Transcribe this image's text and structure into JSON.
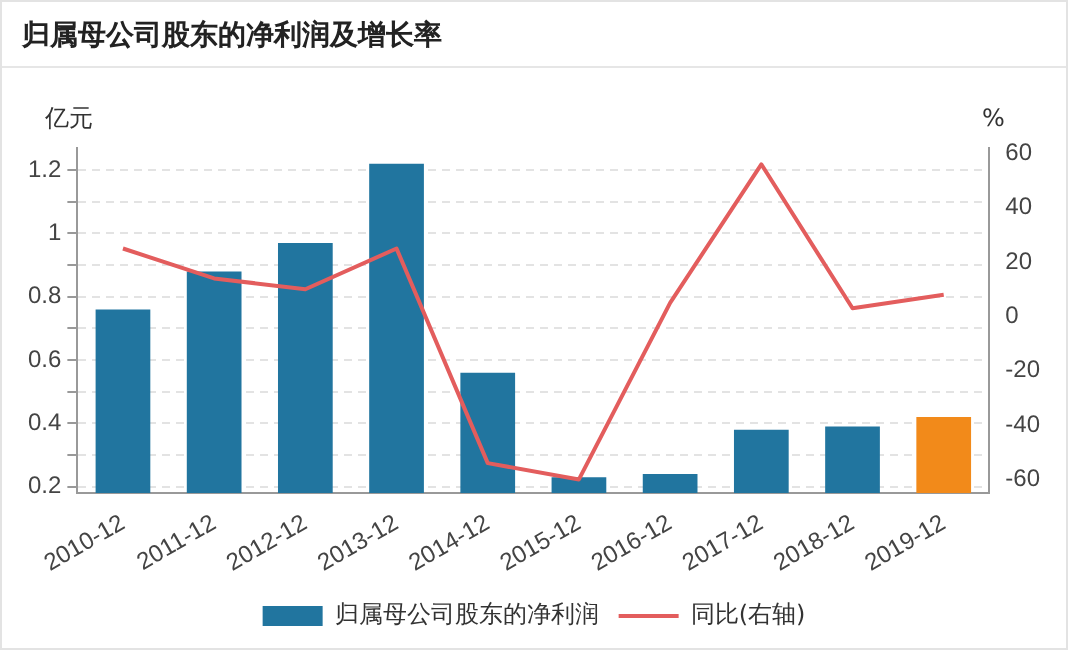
{
  "chart_data": {
    "type": "bar",
    "title": "归属母公司股东的净利润及增长率",
    "ylabel": "亿元",
    "y2label": "%",
    "categories": [
      "2010-12",
      "2011-12",
      "2012-12",
      "2013-12",
      "2014-12",
      "2015-12",
      "2016-12",
      "2017-12",
      "2018-12",
      "2019-12"
    ],
    "series": [
      {
        "name": "归属母公司股东的净利润",
        "color": "#21759f",
        "colors": [
          "#21759f",
          "#21759f",
          "#21759f",
          "#21759f",
          "#21759f",
          "#21759f",
          "#21759f",
          "#21759f",
          "#21759f",
          "#f28a1a"
        ],
        "values": [
          0.76,
          0.88,
          0.97,
          1.22,
          0.56,
          0.23,
          0.24,
          0.38,
          0.39,
          0.42
        ]
      },
      {
        "name": "同比(右轴)",
        "type": "line",
        "axis": "y2",
        "color": "#e35d5d",
        "values": [
          25,
          14,
          10,
          25,
          -54,
          -60,
          5,
          56,
          3,
          8
        ]
      }
    ],
    "ylim": [
      0.18,
      1.27
    ],
    "yticks": [
      0.2,
      {
        "value": 0.3,
        "label": null
      },
      0.4,
      {
        "value": 0.5,
        "label": null
      },
      0.6,
      {
        "value": 0.7,
        "label": null
      },
      0.8,
      {
        "value": 0.9,
        "label": null
      },
      1,
      {
        "value": 1.1,
        "label": null
      },
      1.2
    ],
    "y2lim": [
      -65,
      62
    ],
    "y2ticks": [
      -60,
      -40,
      -20,
      0,
      20,
      40,
      60
    ],
    "grid": "y",
    "legend": "bottom",
    "marker": "none",
    "line_style": "solid"
  }
}
